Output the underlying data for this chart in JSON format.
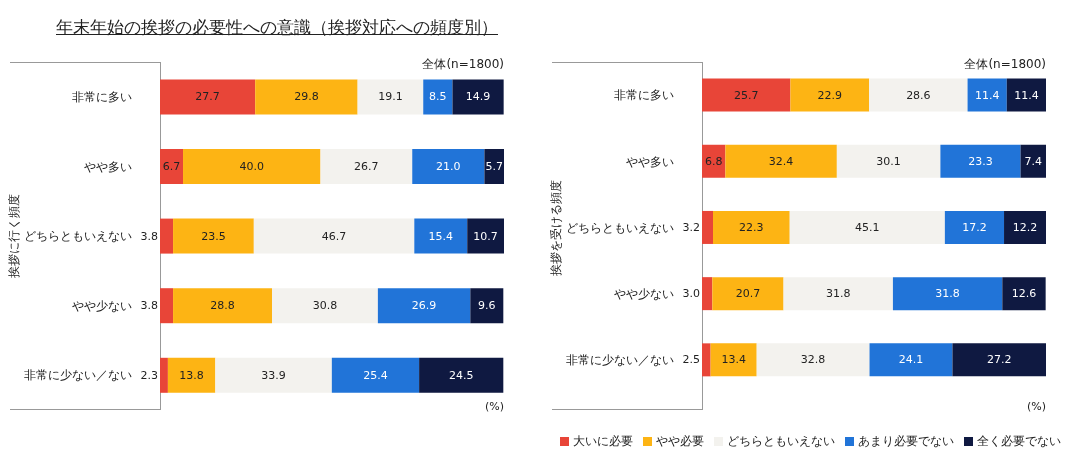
{
  "chart_data": [
    {
      "type": "bar",
      "orientation": "horizontal",
      "stacked": true,
      "legend": false,
      "title": "年末年始の挨拶の必要性への意識（挨拶対応への頻度別）",
      "ylabel": "挨拶に行く頻度",
      "annotations": [
        "全体(n=1800)",
        "(%)"
      ],
      "categories": [
        "非常に多い",
        "やや多い",
        "どちらともいえない",
        "やや少ない",
        "非常に少ない／ない"
      ],
      "series": [
        {
          "color": "#e84538",
          "values": [
            27.7,
            6.7,
            3.8,
            3.8,
            2.3
          ],
          "value_labels": [
            "27.7",
            "6.7",
            "3.8",
            "3.8",
            "2.3"
          ]
        },
        {
          "color": "#fdb414",
          "values": [
            29.8,
            40.0,
            23.5,
            28.8,
            13.8
          ],
          "value_labels": [
            "29.8",
            "40.0",
            "23.5",
            "28.8",
            "13.8"
          ]
        },
        {
          "color": "#f3f2ee",
          "values": [
            19.1,
            26.7,
            46.7,
            30.8,
            33.9
          ],
          "value_labels": [
            "19.1",
            "26.7",
            "46.7",
            "30.8",
            "33.9"
          ]
        },
        {
          "color": "#2174d8",
          "values": [
            8.5,
            21.0,
            15.4,
            26.9,
            25.4
          ],
          "value_labels": [
            "8.5",
            "21.0",
            "15.4",
            "26.9",
            "25.4"
          ]
        },
        {
          "color": "#0f1941",
          "values": [
            14.9,
            5.7,
            10.7,
            9.6,
            24.5
          ],
          "value_labels": [
            "14.9",
            "5.7",
            "10.7",
            "9.6",
            "24.5"
          ]
        }
      ]
    },
    {
      "type": "bar",
      "orientation": "horizontal",
      "stacked": true,
      "legend": "bottom",
      "ylabel": "挨拶を受ける頻度",
      "annotations": [
        "全体(n=1800)",
        "(%)"
      ],
      "categories": [
        "非常に多い",
        "やや多い",
        "どちらともいえない",
        "やや少ない",
        "非常に少ない／ない"
      ],
      "series": [
        {
          "name": "大いに必要",
          "color": "#e84538",
          "values": [
            25.7,
            6.8,
            3.2,
            3.0,
            2.5
          ],
          "value_labels": [
            "25.7",
            "6.8",
            "3.2",
            "3.0",
            "2.5"
          ]
        },
        {
          "name": "やや必要",
          "color": "#fdb414",
          "values": [
            22.9,
            32.4,
            22.3,
            20.7,
            13.4
          ],
          "value_labels": [
            "22.9",
            "32.4",
            "22.3",
            "20.7",
            "13.4"
          ]
        },
        {
          "name": "どちらともいえない",
          "color": "#f3f2ee",
          "values": [
            28.6,
            30.1,
            45.1,
            31.8,
            32.8
          ],
          "value_labels": [
            "28.6",
            "30.1",
            "45.1",
            "31.8",
            "32.8"
          ]
        },
        {
          "name": "あまり必要でない",
          "color": "#2174d8",
          "values": [
            11.4,
            23.3,
            17.2,
            31.8,
            24.1
          ],
          "value_labels": [
            "11.4",
            "23.3",
            "17.2",
            "31.8",
            "24.1"
          ]
        },
        {
          "name": "全く必要でない",
          "color": "#0f1941",
          "values": [
            11.4,
            7.4,
            12.2,
            12.6,
            27.2
          ],
          "value_labels": [
            "11.4",
            "7.4",
            "12.2",
            "12.6",
            "27.2"
          ]
        }
      ]
    }
  ]
}
